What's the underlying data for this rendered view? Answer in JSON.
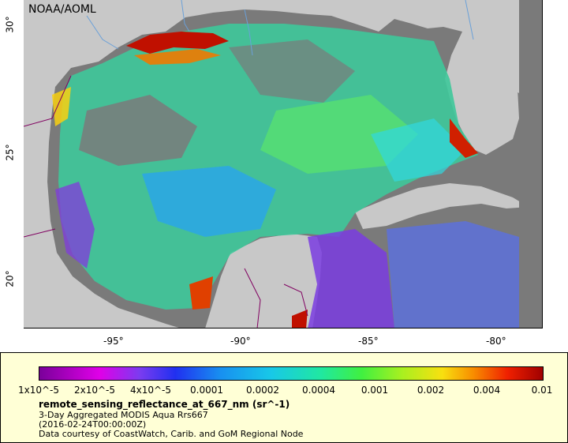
{
  "map": {
    "credit": "NOAA/AOML",
    "lon_ticks": [
      "-95°",
      "-90°",
      "-85°",
      "-80°"
    ],
    "lat_ticks": [
      "30°",
      "25°",
      "20°"
    ],
    "colors": {
      "land": "#c8c8c8",
      "no_data": "#7a7a7a",
      "border": "#800060",
      "river": "#6aa0d8"
    }
  },
  "legend": {
    "ticks": [
      "1x10^-5",
      "2x10^-5",
      "4x10^-5",
      "0.0001",
      "0.0002",
      "0.0004",
      "0.001",
      "0.002",
      "0.004",
      "0.01"
    ],
    "title": "remote_sensing_reflectance_at_667_nm (sr^-1)",
    "line1": "3-Day Aggregated MODIS Aqua Rrs667",
    "line2": "(2016-02-24T00:00:00Z)",
    "line3": "Data courtesy of CoastWatch, Carib. and GoM Regional Node"
  }
}
